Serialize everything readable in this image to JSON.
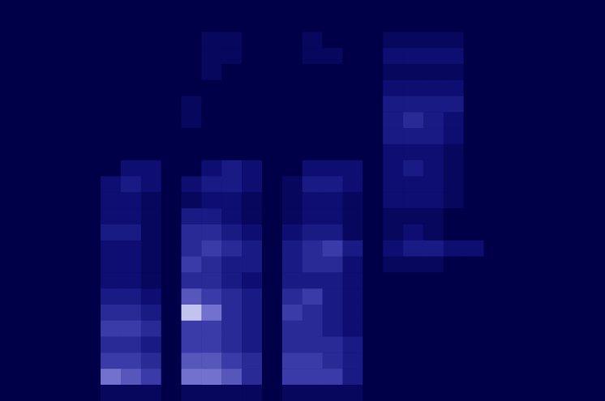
{
  "chart_data": {
    "type": "heatmap",
    "tick_labels": false,
    "grid": false,
    "zlim": [
      0,
      10
    ],
    "cells": [
      [
        0,
        0,
        0,
        0,
        0,
        0,
        0,
        0,
        0,
        0,
        0,
        0,
        0,
        0,
        0,
        0,
        0,
        0,
        0,
        0,
        0,
        0,
        0,
        0,
        0,
        0,
        0,
        0,
        0,
        0
      ],
      [
        0,
        0,
        0,
        0,
        0,
        0,
        0,
        0,
        0,
        0,
        0,
        0,
        0,
        0,
        0,
        0,
        0,
        0,
        0,
        0,
        0,
        0,
        0,
        0,
        0,
        0,
        0,
        0,
        0,
        0
      ],
      [
        0,
        0,
        0,
        0,
        0,
        0,
        0,
        0,
        0,
        0,
        1,
        1,
        0,
        0,
        0,
        1,
        0,
        0,
        0,
        1,
        1,
        1,
        1,
        0,
        0,
        0,
        0,
        0,
        0,
        0
      ],
      [
        0,
        0,
        0,
        0,
        0,
        0,
        0,
        0,
        0,
        0,
        1,
        1,
        0,
        0,
        0,
        1,
        1,
        0,
        0,
        2,
        2,
        2,
        2,
        0,
        0,
        0,
        0,
        0,
        0,
        0
      ],
      [
        0,
        0,
        0,
        0,
        0,
        0,
        0,
        0,
        0,
        0,
        1,
        0,
        0,
        0,
        0,
        0,
        0,
        0,
        0,
        1,
        1,
        1,
        1,
        0,
        0,
        0,
        0,
        0,
        0,
        0
      ],
      [
        0,
        0,
        0,
        0,
        0,
        0,
        0,
        0,
        0,
        0,
        0,
        0,
        0,
        0,
        0,
        0,
        0,
        0,
        0,
        2,
        2,
        2,
        2,
        0,
        0,
        0,
        0,
        0,
        0,
        0
      ],
      [
        0,
        0,
        0,
        0,
        0,
        0,
        0,
        0,
        0,
        1,
        0,
        0,
        0,
        0,
        0,
        0,
        0,
        0,
        0,
        3,
        3,
        3,
        3,
        0,
        0,
        0,
        0,
        0,
        0,
        0
      ],
      [
        0,
        0,
        0,
        0,
        0,
        0,
        0,
        0,
        0,
        1,
        0,
        0,
        0,
        0,
        0,
        0,
        0,
        0,
        0,
        3,
        4,
        3,
        2,
        0,
        0,
        0,
        0,
        0,
        0,
        0
      ],
      [
        0,
        0,
        0,
        0,
        0,
        0,
        0,
        0,
        0,
        0,
        0,
        0,
        0,
        0,
        0,
        0,
        0,
        0,
        0,
        3,
        3,
        3,
        2,
        0,
        0,
        0,
        0,
        0,
        0,
        0
      ],
      [
        0,
        0,
        0,
        0,
        0,
        0,
        0,
        0,
        0,
        0,
        0,
        0,
        0,
        0,
        0,
        0,
        0,
        0,
        0,
        2,
        2,
        2,
        1,
        0,
        0,
        0,
        0,
        0,
        0,
        0
      ],
      [
        0,
        0,
        0,
        0,
        0,
        0,
        2,
        2,
        0,
        0,
        2,
        3,
        2,
        0,
        0,
        2,
        2,
        2,
        0,
        2,
        3,
        2,
        1,
        0,
        0,
        0,
        0,
        0,
        0,
        0
      ],
      [
        0,
        0,
        0,
        0,
        0,
        2,
        3,
        2,
        0,
        2,
        3,
        3,
        2,
        0,
        1,
        3,
        3,
        2,
        0,
        2,
        2,
        2,
        1,
        0,
        0,
        0,
        0,
        0,
        0,
        0
      ],
      [
        0,
        0,
        0,
        0,
        0,
        2,
        2,
        1,
        0,
        1,
        2,
        2,
        1,
        0,
        1,
        2,
        2,
        1,
        0,
        2,
        2,
        2,
        1,
        0,
        0,
        0,
        0,
        0,
        0,
        0
      ],
      [
        0,
        0,
        0,
        0,
        0,
        2,
        2,
        1,
        0,
        3,
        3,
        2,
        1,
        0,
        1,
        2,
        2,
        1,
        0,
        1,
        1,
        1,
        0,
        0,
        0,
        0,
        0,
        0,
        0,
        0
      ],
      [
        0,
        0,
        0,
        0,
        0,
        3,
        3,
        1,
        0,
        4,
        4,
        3,
        2,
        0,
        2,
        3,
        3,
        1,
        0,
        1,
        2,
        1,
        0,
        0,
        0,
        0,
        0,
        0,
        0,
        0
      ],
      [
        0,
        0,
        0,
        0,
        0,
        2,
        2,
        1,
        0,
        4,
        5,
        4,
        3,
        0,
        3,
        4,
        5,
        3,
        0,
        2,
        3,
        3,
        2,
        2,
        0,
        0,
        0,
        0,
        0,
        0
      ],
      [
        0,
        0,
        0,
        0,
        0,
        2,
        2,
        1,
        0,
        5,
        4,
        3,
        3,
        0,
        3,
        4,
        4,
        2,
        0,
        1,
        1,
        1,
        0,
        0,
        0,
        0,
        0,
        0,
        0,
        0
      ],
      [
        0,
        0,
        0,
        0,
        0,
        2,
        2,
        1,
        0,
        4,
        4,
        3,
        2,
        0,
        3,
        3,
        3,
        2,
        0,
        0,
        0,
        0,
        0,
        0,
        0,
        0,
        0,
        0,
        0,
        0
      ],
      [
        0,
        0,
        0,
        0,
        0,
        3,
        3,
        2,
        0,
        6,
        5,
        4,
        3,
        0,
        4,
        5,
        3,
        2,
        0,
        0,
        0,
        0,
        0,
        0,
        0,
        0,
        0,
        0,
        0,
        0
      ],
      [
        0,
        0,
        0,
        0,
        0,
        4,
        4,
        3,
        0,
        9,
        7,
        4,
        3,
        0,
        5,
        4,
        3,
        2,
        0,
        0,
        0,
        0,
        0,
        0,
        0,
        0,
        0,
        0,
        0,
        0
      ],
      [
        0,
        0,
        0,
        0,
        0,
        5,
        5,
        4,
        0,
        5,
        5,
        4,
        3,
        0,
        4,
        4,
        3,
        2,
        0,
        0,
        0,
        0,
        0,
        0,
        0,
        0,
        0,
        0,
        0,
        0
      ],
      [
        0,
        0,
        0,
        0,
        0,
        4,
        4,
        3,
        0,
        5,
        5,
        4,
        3,
        0,
        4,
        4,
        4,
        3,
        0,
        0,
        0,
        0,
        0,
        0,
        0,
        0,
        0,
        0,
        0,
        0
      ],
      [
        0,
        0,
        0,
        0,
        0,
        5,
        5,
        4,
        0,
        6,
        6,
        5,
        4,
        0,
        5,
        5,
        4,
        3,
        0,
        0,
        0,
        0,
        0,
        0,
        0,
        0,
        0,
        0,
        0,
        0
      ],
      [
        0,
        0,
        0,
        0,
        0,
        7,
        6,
        5,
        0,
        7,
        7,
        6,
        4,
        0,
        5,
        5,
        5,
        3,
        0,
        0,
        0,
        0,
        0,
        0,
        0,
        0,
        0,
        0,
        0,
        0
      ],
      [
        0,
        0,
        0,
        0,
        0,
        1,
        1,
        1,
        0,
        1,
        1,
        1,
        1,
        0,
        1,
        1,
        1,
        1,
        0,
        0,
        0,
        0,
        0,
        0,
        0,
        0,
        0,
        0,
        0,
        0
      ]
    ]
  }
}
